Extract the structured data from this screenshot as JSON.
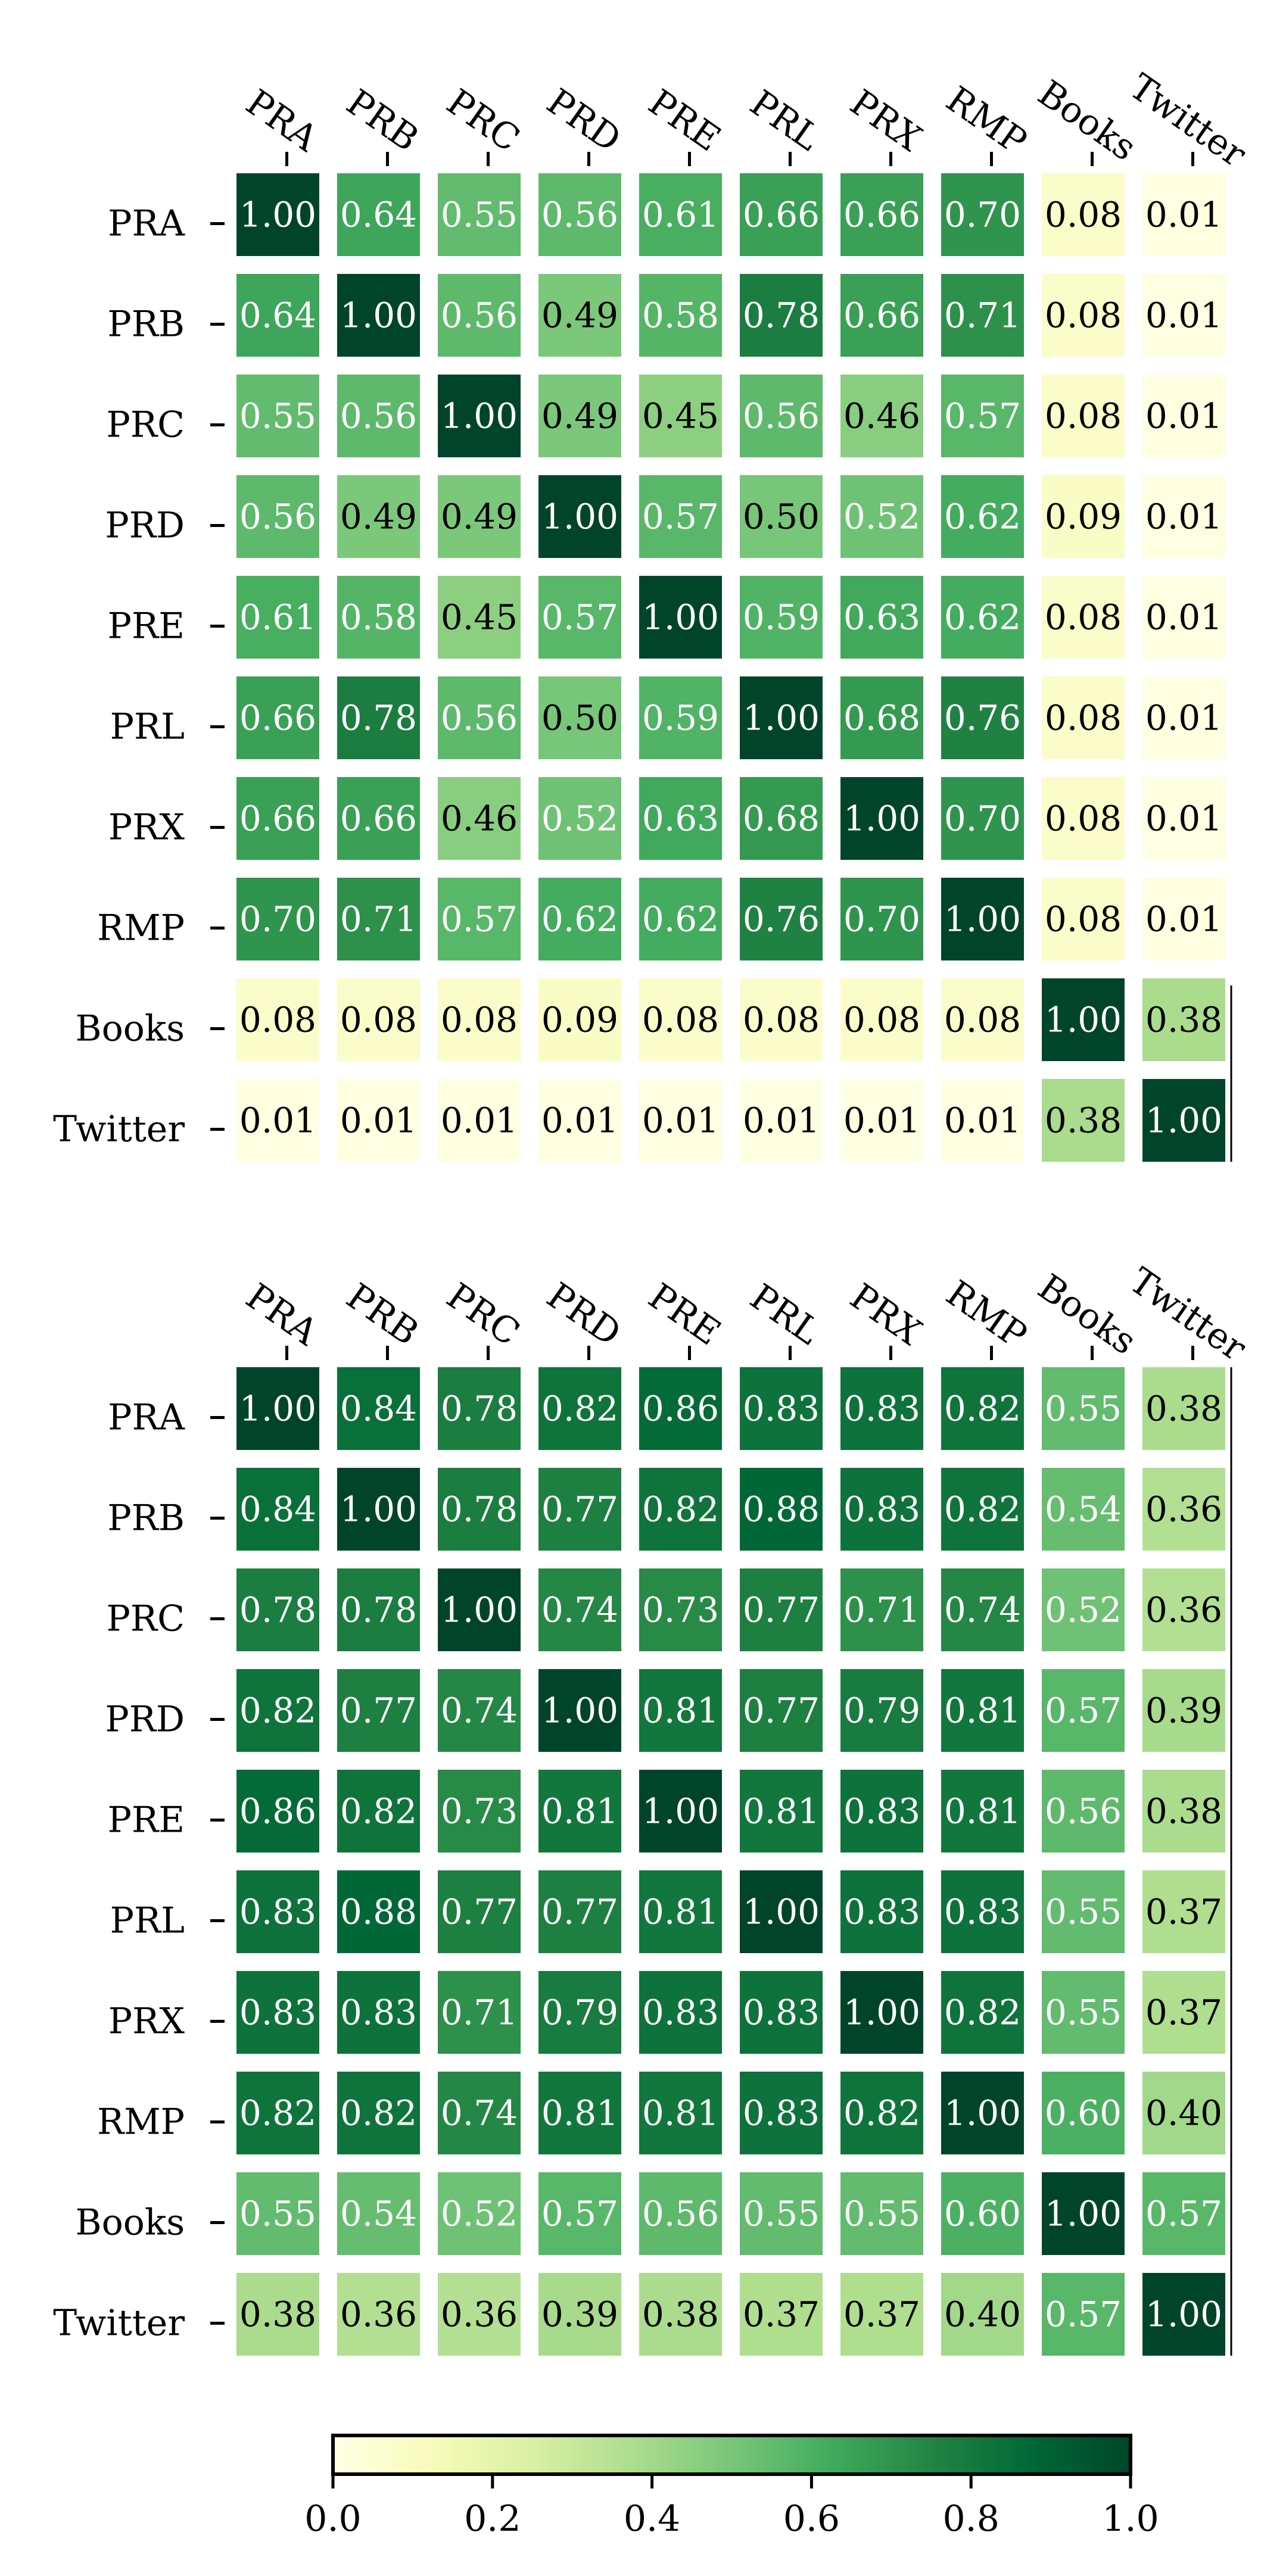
{
  "chart_data": [
    {
      "type": "heatmap",
      "labels": [
        "PRA",
        "PRB",
        "PRC",
        "PRD",
        "PRE",
        "PRL",
        "PRX",
        "RMP",
        "Books",
        "Twitter"
      ],
      "values": [
        [
          "1.00",
          "0.64",
          "0.55",
          "0.56",
          "0.61",
          "0.66",
          "0.66",
          "0.70",
          "0.08",
          "0.01"
        ],
        [
          "0.64",
          "1.00",
          "0.56",
          "0.49",
          "0.58",
          "0.78",
          "0.66",
          "0.71",
          "0.08",
          "0.01"
        ],
        [
          "0.55",
          "0.56",
          "1.00",
          "0.49",
          "0.45",
          "0.56",
          "0.46",
          "0.57",
          "0.08",
          "0.01"
        ],
        [
          "0.56",
          "0.49",
          "0.49",
          "1.00",
          "0.57",
          "0.50",
          "0.52",
          "0.62",
          "0.09",
          "0.01"
        ],
        [
          "0.61",
          "0.58",
          "0.45",
          "0.57",
          "1.00",
          "0.59",
          "0.63",
          "0.62",
          "0.08",
          "0.01"
        ],
        [
          "0.66",
          "0.78",
          "0.56",
          "0.50",
          "0.59",
          "1.00",
          "0.68",
          "0.76",
          "0.08",
          "0.01"
        ],
        [
          "0.66",
          "0.66",
          "0.46",
          "0.52",
          "0.63",
          "0.68",
          "1.00",
          "0.70",
          "0.08",
          "0.01"
        ],
        [
          "0.70",
          "0.71",
          "0.57",
          "0.62",
          "0.62",
          "0.76",
          "0.70",
          "1.00",
          "0.08",
          "0.01"
        ],
        [
          "0.08",
          "0.08",
          "0.08",
          "0.09",
          "0.08",
          "0.08",
          "0.08",
          "0.08",
          "1.00",
          "0.38"
        ],
        [
          "0.01",
          "0.01",
          "0.01",
          "0.01",
          "0.01",
          "0.01",
          "0.01",
          "0.01",
          "0.38",
          "1.00"
        ]
      ]
    },
    {
      "type": "heatmap",
      "labels": [
        "PRA",
        "PRB",
        "PRC",
        "PRD",
        "PRE",
        "PRL",
        "PRX",
        "RMP",
        "Books",
        "Twitter"
      ],
      "values": [
        [
          "1.00",
          "0.84",
          "0.78",
          "0.82",
          "0.86",
          "0.83",
          "0.83",
          "0.82",
          "0.55",
          "0.38"
        ],
        [
          "0.84",
          "1.00",
          "0.78",
          "0.77",
          "0.82",
          "0.88",
          "0.83",
          "0.82",
          "0.54",
          "0.36"
        ],
        [
          "0.78",
          "0.78",
          "1.00",
          "0.74",
          "0.73",
          "0.77",
          "0.71",
          "0.74",
          "0.52",
          "0.36"
        ],
        [
          "0.82",
          "0.77",
          "0.74",
          "1.00",
          "0.81",
          "0.77",
          "0.79",
          "0.81",
          "0.57",
          "0.39"
        ],
        [
          "0.86",
          "0.82",
          "0.73",
          "0.81",
          "1.00",
          "0.81",
          "0.83",
          "0.81",
          "0.56",
          "0.38"
        ],
        [
          "0.83",
          "0.88",
          "0.77",
          "0.77",
          "0.81",
          "1.00",
          "0.83",
          "0.83",
          "0.55",
          "0.37"
        ],
        [
          "0.83",
          "0.83",
          "0.71",
          "0.79",
          "0.83",
          "0.83",
          "1.00",
          "0.82",
          "0.55",
          "0.37"
        ],
        [
          "0.82",
          "0.82",
          "0.74",
          "0.81",
          "0.81",
          "0.83",
          "0.82",
          "1.00",
          "0.60",
          "0.40"
        ],
        [
          "0.55",
          "0.54",
          "0.52",
          "0.57",
          "0.56",
          "0.55",
          "0.55",
          "0.60",
          "1.00",
          "0.57"
        ],
        [
          "0.38",
          "0.36",
          "0.36",
          "0.39",
          "0.38",
          "0.37",
          "0.37",
          "0.40",
          "0.57",
          "1.00"
        ]
      ]
    }
  ],
  "colorbar": {
    "colormap": "YlGn",
    "range": [
      0.0,
      1.0
    ],
    "ticks": [
      "0.0",
      "0.2",
      "0.4",
      "0.6",
      "0.8",
      "1.0"
    ]
  }
}
